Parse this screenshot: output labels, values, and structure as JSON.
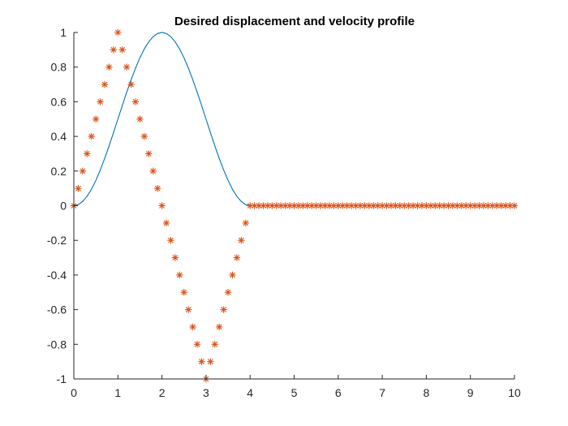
{
  "chart_data": {
    "type": "line",
    "title": "Desired displacement and velocity profile",
    "xlabel": "",
    "ylabel": "",
    "xlim": [
      0,
      10
    ],
    "ylim": [
      -1,
      1
    ],
    "grid": false,
    "x_ticks": [
      "0",
      "1",
      "2",
      "3",
      "4",
      "5",
      "6",
      "7",
      "8",
      "9",
      "10"
    ],
    "y_ticks": [
      "1",
      "0.8",
      "0.6",
      "0.4",
      "0.2",
      "0",
      "-0.2",
      "-0.4",
      "-0.6",
      "-0.8",
      "-1"
    ],
    "series": [
      {
        "style": "line",
        "color": "#0072BD",
        "x": [
          0,
          0.1,
          0.2,
          0.3,
          0.4,
          0.5,
          0.6,
          0.7,
          0.8,
          0.9,
          1.0,
          1.1,
          1.2,
          1.3,
          1.4,
          1.5,
          1.6,
          1.7,
          1.8,
          1.9,
          2.0,
          2.1,
          2.2,
          2.3,
          2.4,
          2.5,
          2.6,
          2.7,
          2.8,
          2.9,
          3.0,
          3.1,
          3.2,
          3.3,
          3.4,
          3.5,
          3.6,
          3.7,
          3.8,
          3.9,
          4.0,
          5,
          6,
          7,
          8,
          9,
          10
        ],
        "y": [
          0,
          0.006,
          0.024,
          0.054,
          0.095,
          0.146,
          0.206,
          0.273,
          0.345,
          0.422,
          0.5,
          0.578,
          0.655,
          0.727,
          0.794,
          0.854,
          0.905,
          0.946,
          0.976,
          0.994,
          1.0,
          0.994,
          0.976,
          0.946,
          0.905,
          0.854,
          0.794,
          0.727,
          0.655,
          0.578,
          0.5,
          0.422,
          0.345,
          0.273,
          0.206,
          0.146,
          0.095,
          0.054,
          0.024,
          0.006,
          0,
          0,
          0,
          0,
          0,
          0,
          0
        ]
      },
      {
        "style": "marker",
        "marker": "*",
        "color": "#D95319",
        "x": [
          0,
          0.1,
          0.2,
          0.3,
          0.4,
          0.5,
          0.6,
          0.7,
          0.8,
          0.9,
          1.0,
          1.1,
          1.2,
          1.3,
          1.4,
          1.5,
          1.6,
          1.7,
          1.8,
          1.9,
          2.0,
          2.1,
          2.2,
          2.3,
          2.4,
          2.5,
          2.6,
          2.7,
          2.8,
          2.9,
          3.0,
          3.1,
          3.2,
          3.3,
          3.4,
          3.5,
          3.6,
          3.7,
          3.8,
          3.9,
          4.0,
          4.1,
          4.2,
          4.3,
          4.4,
          4.5,
          4.6,
          4.7,
          4.8,
          4.9,
          5.0,
          5.1,
          5.2,
          5.3,
          5.4,
          5.5,
          5.6,
          5.7,
          5.8,
          5.9,
          6.0,
          6.1,
          6.2,
          6.3,
          6.4,
          6.5,
          6.6,
          6.7,
          6.8,
          6.9,
          7.0,
          7.1,
          7.2,
          7.3,
          7.4,
          7.5,
          7.6,
          7.7,
          7.8,
          7.9,
          8.0,
          8.1,
          8.2,
          8.3,
          8.4,
          8.5,
          8.6,
          8.7,
          8.8,
          8.9,
          9.0,
          9.1,
          9.2,
          9.3,
          9.4,
          9.5,
          9.6,
          9.7,
          9.8,
          9.9,
          10.0
        ],
        "y": [
          0,
          0.1,
          0.2,
          0.3,
          0.4,
          0.5,
          0.6,
          0.7,
          0.8,
          0.9,
          1.0,
          0.9,
          0.8,
          0.7,
          0.6,
          0.5,
          0.4,
          0.3,
          0.2,
          0.1,
          0,
          -0.1,
          -0.2,
          -0.3,
          -0.4,
          -0.5,
          -0.6,
          -0.7,
          -0.8,
          -0.9,
          -1.0,
          -0.9,
          -0.8,
          -0.7,
          -0.6,
          -0.5,
          -0.4,
          -0.3,
          -0.2,
          -0.1,
          0,
          0,
          0,
          0,
          0,
          0,
          0,
          0,
          0,
          0,
          0,
          0,
          0,
          0,
          0,
          0,
          0,
          0,
          0,
          0,
          0,
          0,
          0,
          0,
          0,
          0,
          0,
          0,
          0,
          0,
          0,
          0,
          0,
          0,
          0,
          0,
          0,
          0,
          0,
          0,
          0,
          0,
          0,
          0,
          0,
          0,
          0,
          0,
          0,
          0,
          0,
          0,
          0,
          0,
          0,
          0,
          0,
          0,
          0,
          0,
          0
        ]
      }
    ]
  }
}
